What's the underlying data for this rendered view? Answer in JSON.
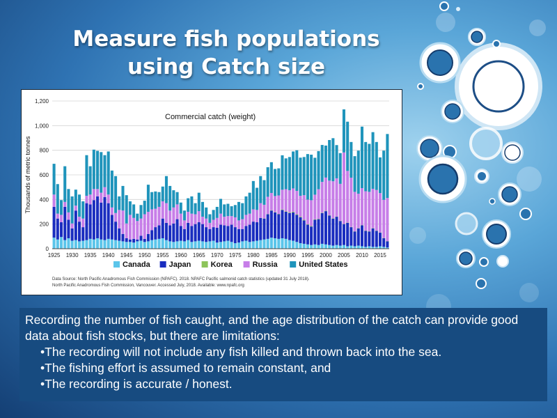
{
  "slide": {
    "title_line1": "Measure fish populations",
    "title_line2": "using Catch size"
  },
  "chart_data": {
    "type": "bar",
    "stacked": true,
    "title": "Commercial catch (weight)",
    "ylabel": "Thousands of metric tonnes",
    "xlabel": "",
    "ylim": [
      0,
      1200
    ],
    "yticks": [
      "0",
      "200",
      "400",
      "600",
      "800",
      "1,000",
      "1,200"
    ],
    "x_start": 1925,
    "x_end": 2017,
    "xticks": [
      "1925",
      "1930",
      "1935",
      "1940",
      "1945",
      "1950",
      "1955",
      "1960",
      "1965",
      "1970",
      "1975",
      "1980",
      "1985",
      "1990",
      "1995",
      "2000",
      "2005",
      "2010",
      "2015"
    ],
    "grid": true,
    "legend_position": "bottom",
    "series": [
      {
        "name": "Canada",
        "color": "#5bc5ea",
        "values": [
          90,
          75,
          95,
          70,
          85,
          65,
          70,
          60,
          65,
          70,
          80,
          75,
          85,
          75,
          70,
          80,
          75,
          70,
          65,
          60,
          55,
          55,
          50,
          60,
          65,
          55,
          60,
          70,
          75,
          80,
          85,
          70,
          60,
          55,
          60,
          65,
          60,
          70,
          55,
          60,
          65,
          60,
          55,
          60,
          65,
          50,
          55,
          60,
          65,
          55,
          45,
          50,
          60,
          65,
          55,
          60,
          65,
          70,
          75,
          80,
          90,
          85,
          80,
          85,
          80,
          70,
          65,
          55,
          45,
          40,
          35,
          30,
          35,
          30,
          40,
          35,
          30,
          25,
          30,
          25,
          30,
          20,
          25,
          20,
          25,
          20,
          15,
          20,
          15,
          15,
          20,
          15,
          10
        ]
      },
      {
        "name": "Japan",
        "color": "#1a2dbf",
        "values": [
          250,
          170,
          120,
          270,
          150,
          100,
          240,
          160,
          110,
          300,
          280,
          320,
          340,
          300,
          350,
          290,
          200,
          150,
          100,
          60,
          30,
          20,
          30,
          15,
          40,
          25,
          60,
          80,
          100,
          110,
          160,
          140,
          130,
          150,
          180,
          120,
          100,
          140,
          130,
          140,
          150,
          140,
          120,
          100,
          110,
          120,
          140,
          130,
          120,
          140,
          130,
          110,
          100,
          120,
          140,
          160,
          150,
          180,
          170,
          200,
          220,
          210,
          200,
          230,
          220,
          220,
          230,
          220,
          210,
          190,
          160,
          150,
          200,
          210,
          250,
          270,
          240,
          220,
          230,
          200,
          170,
          190,
          150,
          120,
          140,
          170,
          130,
          120,
          150,
          130,
          110,
          70,
          50
        ]
      },
      {
        "name": "Korea",
        "color": "#8dc45a",
        "values": [
          0,
          0,
          0,
          0,
          0,
          0,
          0,
          0,
          0,
          0,
          0,
          0,
          0,
          0,
          0,
          0,
          0,
          0,
          0,
          0,
          0,
          0,
          0,
          0,
          0,
          0,
          0,
          0,
          0,
          0,
          0,
          0,
          0,
          0,
          0,
          0,
          0,
          0,
          0,
          0,
          0,
          0,
          0,
          0,
          0,
          0,
          0,
          0,
          0,
          0,
          0,
          0,
          0,
          0,
          0,
          0,
          0,
          0,
          2,
          2,
          3,
          3,
          3,
          4,
          4,
          5,
          5,
          5,
          5,
          5,
          4,
          4,
          4,
          3,
          3,
          3,
          3,
          3,
          2,
          2,
          2,
          2,
          2,
          2,
          2,
          2,
          2,
          2,
          2,
          2,
          2,
          2,
          2
        ]
      },
      {
        "name": "Russia",
        "color": "#c77ee8",
        "values": [
          100,
          40,
          60,
          40,
          60,
          40,
          40,
          40,
          70,
          60,
          80,
          90,
          60,
          80,
          80,
          70,
          60,
          70,
          150,
          190,
          120,
          200,
          170,
          150,
          140,
          200,
          180,
          170,
          150,
          150,
          140,
          160,
          120,
          130,
          120,
          100,
          70,
          90,
          100,
          80,
          90,
          60,
          70,
          50,
          60,
          80,
          90,
          70,
          80,
          70,
          80,
          70,
          80,
          90,
          90,
          100,
          100,
          120,
          110,
          140,
          140,
          130,
          150,
          160,
          180,
          180,
          190,
          190,
          170,
          200,
          200,
          210,
          200,
          240,
          250,
          270,
          280,
          300,
          310,
          300,
          580,
          420,
          400,
          320,
          280,
          300,
          320,
          320,
          320,
          330,
          320,
          310,
          350
        ]
      },
      {
        "name": "United States",
        "color": "#1f94bb",
        "values": [
          250,
          240,
          120,
          290,
          190,
          220,
          130,
          180,
          140,
          330,
          230,
          320,
          310,
          330,
          260,
          350,
          300,
          300,
          110,
          200,
          230,
          110,
          110,
          60,
          110,
          110,
          220,
          140,
          140,
          120,
          120,
          220,
          200,
          140,
          100,
          90,
          80,
          110,
          140,
          90,
          150,
          120,
          90,
          70,
          80,
          90,
          120,
          100,
          100,
          80,
          100,
          150,
          130,
          150,
          170,
          230,
          180,
          220,
          200,
          240,
          250,
          220,
          220,
          280,
          250,
          270,
          300,
          330,
          310,
          310,
          370,
          370,
          300,
          310,
          300,
          260,
          330,
          350,
          270,
          250,
          350,
          400,
          290,
          290,
          350,
          500,
          400,
          390,
          460,
          390,
          290,
          400,
          520
        ]
      }
    ],
    "source_lines": [
      "Data Source:  North Pacific Anadromous Fish Commission (NPAFC). 2018. NPAFC Pacific salmonid catch statistics (updated 31 July 2018).",
      "North Pacific Anadromous Fish Commission, Vancouver. Accessed July, 2018. Available: www.npafc.org"
    ]
  },
  "textbox": {
    "intro": "Recording the number of fish caught, and the age distribution of the catch can provide good data about fish stocks, but there are limitations:",
    "bullets": [
      "The recording will not include any fish killed and thrown back into the sea.",
      "The fishing effort is assumed to remain constant, and",
      "The recording is accurate / honest."
    ]
  }
}
